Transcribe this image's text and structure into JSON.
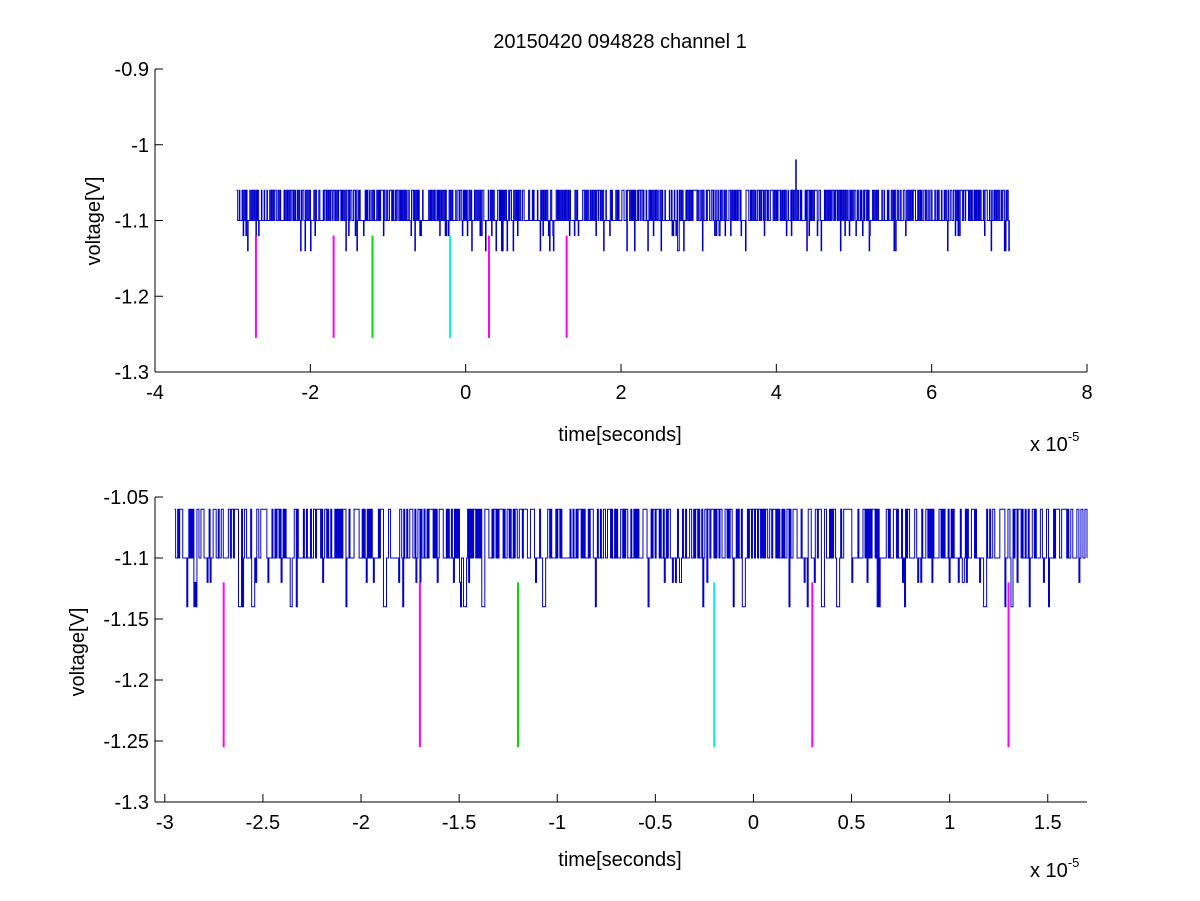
{
  "figure_title": "20150420 094828 channel 1",
  "colors": {
    "signal": "#0000cc",
    "magenta": "#ff00ff",
    "green": "#00dd00",
    "cyan": "#00eeee",
    "axis": "#000000"
  },
  "chart_data": [
    {
      "type": "line",
      "title": "20150420 094828 channel 1",
      "xlabel": "time[seconds]",
      "ylabel": "voltage[V]",
      "x_exponent_label": "x 10",
      "x_exponent": "-5",
      "xlim": [
        -4,
        8
      ],
      "ylim": [
        -1.3,
        -0.9
      ],
      "xticks": [
        -4,
        -2,
        0,
        2,
        4,
        6,
        8
      ],
      "xtick_labels": [
        "-4",
        "-2",
        "0",
        "2",
        "4",
        "6",
        "8"
      ],
      "yticks": [
        -1.3,
        -1.2,
        -1.1,
        -1.0,
        -0.9
      ],
      "ytick_labels": [
        "-1.3",
        "-1.2",
        "-1.1",
        "-1",
        "-0.9"
      ],
      "grid": false,
      "series": [
        {
          "color": "signal",
          "kind": "quantized-noise",
          "x_range": [
            -2.95,
            7.0
          ],
          "baseline": -1.1,
          "levels": [
            -1.06,
            -1.1,
            -1.12,
            -1.14
          ],
          "spike": {
            "x": 4.25,
            "y": -1.02
          }
        }
      ],
      "markers": [
        {
          "x": -2.7,
          "y_top": -1.12,
          "y_bottom": -1.255,
          "color": "magenta"
        },
        {
          "x": -1.7,
          "y_top": -1.12,
          "y_bottom": -1.255,
          "color": "magenta"
        },
        {
          "x": -1.2,
          "y_top": -1.12,
          "y_bottom": -1.255,
          "color": "green"
        },
        {
          "x": -0.2,
          "y_top": -1.12,
          "y_bottom": -1.255,
          "color": "cyan"
        },
        {
          "x": 0.3,
          "y_top": -1.12,
          "y_bottom": -1.255,
          "color": "magenta"
        },
        {
          "x": 1.3,
          "y_top": -1.12,
          "y_bottom": -1.255,
          "color": "magenta"
        }
      ]
    },
    {
      "type": "line",
      "title": "",
      "xlabel": "time[seconds]",
      "ylabel": "voltage[V]",
      "x_exponent_label": "x 10",
      "x_exponent": "-5",
      "xlim": [
        -3.05,
        1.7
      ],
      "ylim": [
        -1.3,
        -1.05
      ],
      "xticks": [
        -3,
        -2.5,
        -2,
        -1.5,
        -1,
        -0.5,
        0,
        0.5,
        1,
        1.5
      ],
      "xtick_labels": [
        "-3",
        "-2.5",
        "-2",
        "-1.5",
        "-1",
        "-0.5",
        "0",
        "0.5",
        "1",
        "1.5"
      ],
      "yticks": [
        -1.3,
        -1.25,
        -1.2,
        -1.15,
        -1.1,
        -1.05
      ],
      "ytick_labels": [
        "-1.3",
        "-1.25",
        "-1.2",
        "-1.15",
        "-1.1",
        "-1.05"
      ],
      "grid": false,
      "series": [
        {
          "color": "signal",
          "kind": "quantized-noise",
          "x_range": [
            -2.95,
            1.7
          ],
          "baseline": -1.1,
          "levels": [
            -1.06,
            -1.1,
            -1.12,
            -1.14
          ],
          "dips": [
            -2.62,
            -2.55,
            -1.88,
            -1.47,
            -1.38,
            -1.07,
            -0.05,
            0.35,
            0.43,
            1.18
          ]
        }
      ],
      "markers": [
        {
          "x": -2.7,
          "y_top": -1.12,
          "y_bottom": -1.255,
          "color": "magenta"
        },
        {
          "x": -1.7,
          "y_top": -1.12,
          "y_bottom": -1.255,
          "color": "magenta"
        },
        {
          "x": -1.2,
          "y_top": -1.12,
          "y_bottom": -1.255,
          "color": "green"
        },
        {
          "x": -0.2,
          "y_top": -1.12,
          "y_bottom": -1.255,
          "color": "cyan"
        },
        {
          "x": 0.3,
          "y_top": -1.12,
          "y_bottom": -1.255,
          "color": "magenta"
        },
        {
          "x": 1.3,
          "y_top": -1.12,
          "y_bottom": -1.255,
          "color": "magenta"
        }
      ]
    }
  ]
}
